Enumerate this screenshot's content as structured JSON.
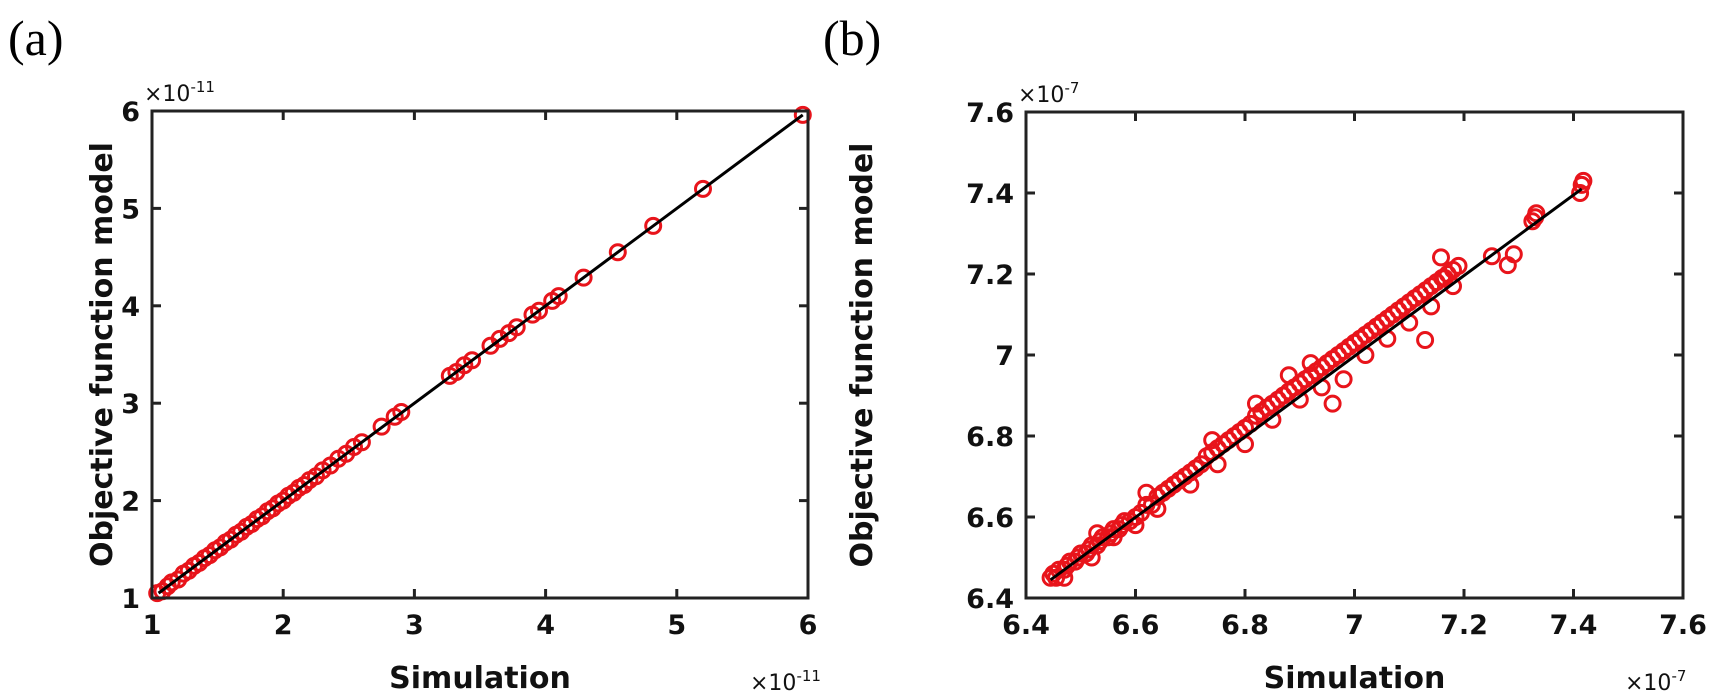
{
  "chart_data": [
    {
      "type": "scatter",
      "panel_label": "(a)",
      "xlabel": "Simulation",
      "ylabel": "Objective function model",
      "x_exponent": "×10",
      "x_exponent_power": "-11",
      "y_exponent": "×10",
      "y_exponent_power": "-11",
      "xlim": [
        1,
        6
      ],
      "ylim": [
        1,
        6
      ],
      "xticks": [
        "1",
        "2",
        "3",
        "4",
        "5",
        "6"
      ],
      "yticks": [
        "1",
        "2",
        "3",
        "4",
        "5",
        "6"
      ],
      "xtick_values": [
        1,
        2,
        3,
        4,
        5,
        6
      ],
      "ytick_values": [
        1,
        2,
        3,
        4,
        5,
        6
      ],
      "grid": false,
      "marker_color": "#e8141b",
      "line_color": "#000000",
      "fit_line": [
        [
          1.05,
          1.05
        ],
        [
          5.96,
          5.96
        ]
      ],
      "points": [
        [
          1.04,
          1.05
        ],
        [
          1.08,
          1.07
        ],
        [
          1.12,
          1.12
        ],
        [
          1.15,
          1.16
        ],
        [
          1.2,
          1.19
        ],
        [
          1.24,
          1.25
        ],
        [
          1.28,
          1.28
        ],
        [
          1.32,
          1.33
        ],
        [
          1.36,
          1.36
        ],
        [
          1.4,
          1.41
        ],
        [
          1.44,
          1.44
        ],
        [
          1.48,
          1.49
        ],
        [
          1.52,
          1.52
        ],
        [
          1.56,
          1.57
        ],
        [
          1.6,
          1.6
        ],
        [
          1.64,
          1.65
        ],
        [
          1.68,
          1.68
        ],
        [
          1.72,
          1.73
        ],
        [
          1.76,
          1.76
        ],
        [
          1.8,
          1.81
        ],
        [
          1.84,
          1.84
        ],
        [
          1.88,
          1.89
        ],
        [
          1.92,
          1.92
        ],
        [
          1.96,
          1.97
        ],
        [
          2.0,
          2.0
        ],
        [
          2.04,
          2.05
        ],
        [
          2.08,
          2.08
        ],
        [
          2.12,
          2.13
        ],
        [
          2.16,
          2.16
        ],
        [
          2.2,
          2.21
        ],
        [
          2.25,
          2.25
        ],
        [
          2.3,
          2.31
        ],
        [
          2.36,
          2.36
        ],
        [
          2.42,
          2.43
        ],
        [
          2.48,
          2.48
        ],
        [
          2.54,
          2.55
        ],
        [
          2.6,
          2.6
        ],
        [
          2.75,
          2.76
        ],
        [
          2.85,
          2.86
        ],
        [
          2.9,
          2.91
        ],
        [
          3.27,
          3.28
        ],
        [
          3.32,
          3.32
        ],
        [
          3.38,
          3.39
        ],
        [
          3.44,
          3.44
        ],
        [
          3.58,
          3.59
        ],
        [
          3.65,
          3.66
        ],
        [
          3.72,
          3.72
        ],
        [
          3.78,
          3.78
        ],
        [
          3.9,
          3.91
        ],
        [
          3.95,
          3.95
        ],
        [
          4.05,
          4.05
        ],
        [
          4.1,
          4.1
        ],
        [
          4.29,
          4.29
        ],
        [
          4.55,
          4.55
        ],
        [
          4.82,
          4.82
        ],
        [
          5.2,
          5.2
        ],
        [
          5.96,
          5.96
        ]
      ]
    },
    {
      "type": "scatter",
      "panel_label": "(b)",
      "xlabel": "Simulation",
      "ylabel": "Objective function model",
      "x_exponent": "×10",
      "x_exponent_power": "-7",
      "y_exponent": "×10",
      "y_exponent_power": "-7",
      "xlim": [
        6.4,
        7.6
      ],
      "ylim": [
        6.4,
        7.6
      ],
      "xticks": [
        "6.4",
        "6.6",
        "6.8",
        "7",
        "7.2",
        "7.4",
        "7.6"
      ],
      "yticks": [
        "6.4",
        "6.6",
        "6.8",
        "7",
        "7.2",
        "7.4",
        "7.6"
      ],
      "xtick_values": [
        6.4,
        6.6,
        6.8,
        7.0,
        7.2,
        7.4,
        7.6
      ],
      "ytick_values": [
        6.4,
        6.6,
        6.8,
        7.0,
        7.2,
        7.4,
        7.6
      ],
      "grid": false,
      "marker_color": "#e8141b",
      "line_color": "#000000",
      "fit_line": [
        [
          6.445,
          6.445
        ],
        [
          7.415,
          7.41
        ]
      ],
      "points": [
        [
          6.445,
          6.45
        ],
        [
          6.45,
          6.46
        ],
        [
          6.455,
          6.45
        ],
        [
          6.46,
          6.47
        ],
        [
          6.47,
          6.47
        ],
        [
          6.475,
          6.48
        ],
        [
          6.48,
          6.49
        ],
        [
          6.49,
          6.49
        ],
        [
          6.495,
          6.5
        ],
        [
          6.5,
          6.51
        ],
        [
          6.51,
          6.51
        ],
        [
          6.515,
          6.52
        ],
        [
          6.52,
          6.53
        ],
        [
          6.53,
          6.53
        ],
        [
          6.535,
          6.54
        ],
        [
          6.54,
          6.55
        ],
        [
          6.55,
          6.55
        ],
        [
          6.555,
          6.56
        ],
        [
          6.56,
          6.57
        ],
        [
          6.57,
          6.57
        ],
        [
          6.575,
          6.58
        ],
        [
          6.58,
          6.59
        ],
        [
          6.59,
          6.59
        ],
        [
          6.6,
          6.6
        ],
        [
          6.61,
          6.61
        ],
        [
          6.62,
          6.63
        ],
        [
          6.63,
          6.63
        ],
        [
          6.64,
          6.65
        ],
        [
          6.65,
          6.66
        ],
        [
          6.66,
          6.67
        ],
        [
          6.67,
          6.68
        ],
        [
          6.68,
          6.69
        ],
        [
          6.69,
          6.7
        ],
        [
          6.7,
          6.71
        ],
        [
          6.71,
          6.72
        ],
        [
          6.72,
          6.73
        ],
        [
          6.73,
          6.75
        ],
        [
          6.74,
          6.76
        ],
        [
          6.75,
          6.77
        ],
        [
          6.76,
          6.78
        ],
        [
          6.77,
          6.79
        ],
        [
          6.78,
          6.8
        ],
        [
          6.79,
          6.81
        ],
        [
          6.8,
          6.82
        ],
        [
          6.81,
          6.83
        ],
        [
          6.82,
          6.85
        ],
        [
          6.83,
          6.86
        ],
        [
          6.84,
          6.87
        ],
        [
          6.85,
          6.88
        ],
        [
          6.86,
          6.89
        ],
        [
          6.87,
          6.9
        ],
        [
          6.88,
          6.91
        ],
        [
          6.89,
          6.92
        ],
        [
          6.9,
          6.93
        ],
        [
          6.91,
          6.94
        ],
        [
          6.92,
          6.95
        ],
        [
          6.93,
          6.96
        ],
        [
          6.94,
          6.97
        ],
        [
          6.95,
          6.98
        ],
        [
          6.96,
          6.99
        ],
        [
          6.97,
          7.0
        ],
        [
          6.98,
          7.01
        ],
        [
          6.99,
          7.02
        ],
        [
          7.0,
          7.03
        ],
        [
          7.01,
          7.04
        ],
        [
          7.02,
          7.05
        ],
        [
          7.03,
          7.06
        ],
        [
          7.04,
          7.07
        ],
        [
          7.05,
          7.08
        ],
        [
          7.06,
          7.09
        ],
        [
          7.07,
          7.1
        ],
        [
          7.08,
          7.11
        ],
        [
          7.09,
          7.12
        ],
        [
          7.1,
          7.13
        ],
        [
          7.11,
          7.14
        ],
        [
          7.12,
          7.15
        ],
        [
          7.13,
          7.16
        ],
        [
          7.14,
          7.17
        ],
        [
          7.15,
          7.18
        ],
        [
          7.16,
          7.19
        ],
        [
          7.17,
          7.2
        ],
        [
          7.18,
          7.21
        ],
        [
          7.19,
          7.22
        ],
        [
          6.47,
          6.45
        ],
        [
          6.52,
          6.5
        ],
        [
          6.56,
          6.55
        ],
        [
          6.6,
          6.58
        ],
        [
          6.64,
          6.62
        ],
        [
          6.7,
          6.68
        ],
        [
          6.75,
          6.73
        ],
        [
          6.8,
          6.78
        ],
        [
          6.85,
          6.84
        ],
        [
          6.9,
          6.89
        ],
        [
          6.94,
          6.92
        ],
        [
          6.96,
          6.88
        ],
        [
          6.98,
          6.94
        ],
        [
          7.02,
          7.0
        ],
        [
          7.06,
          7.04
        ],
        [
          7.1,
          7.08
        ],
        [
          7.14,
          7.12
        ],
        [
          7.18,
          7.17
        ],
        [
          6.74,
          6.79
        ],
        [
          6.82,
          6.88
        ],
        [
          6.88,
          6.95
        ],
        [
          6.92,
          6.98
        ],
        [
          6.62,
          6.66
        ],
        [
          6.53,
          6.56
        ],
        [
          7.158,
          7.241
        ],
        [
          7.251,
          7.244
        ],
        [
          7.291,
          7.249
        ],
        [
          7.28,
          7.222
        ],
        [
          7.129,
          7.037
        ],
        [
          7.165,
          7.19
        ],
        [
          7.33,
          7.34
        ],
        [
          7.325,
          7.33
        ],
        [
          7.332,
          7.35
        ],
        [
          7.415,
          7.42
        ],
        [
          7.418,
          7.43
        ],
        [
          7.412,
          7.4
        ]
      ]
    }
  ]
}
